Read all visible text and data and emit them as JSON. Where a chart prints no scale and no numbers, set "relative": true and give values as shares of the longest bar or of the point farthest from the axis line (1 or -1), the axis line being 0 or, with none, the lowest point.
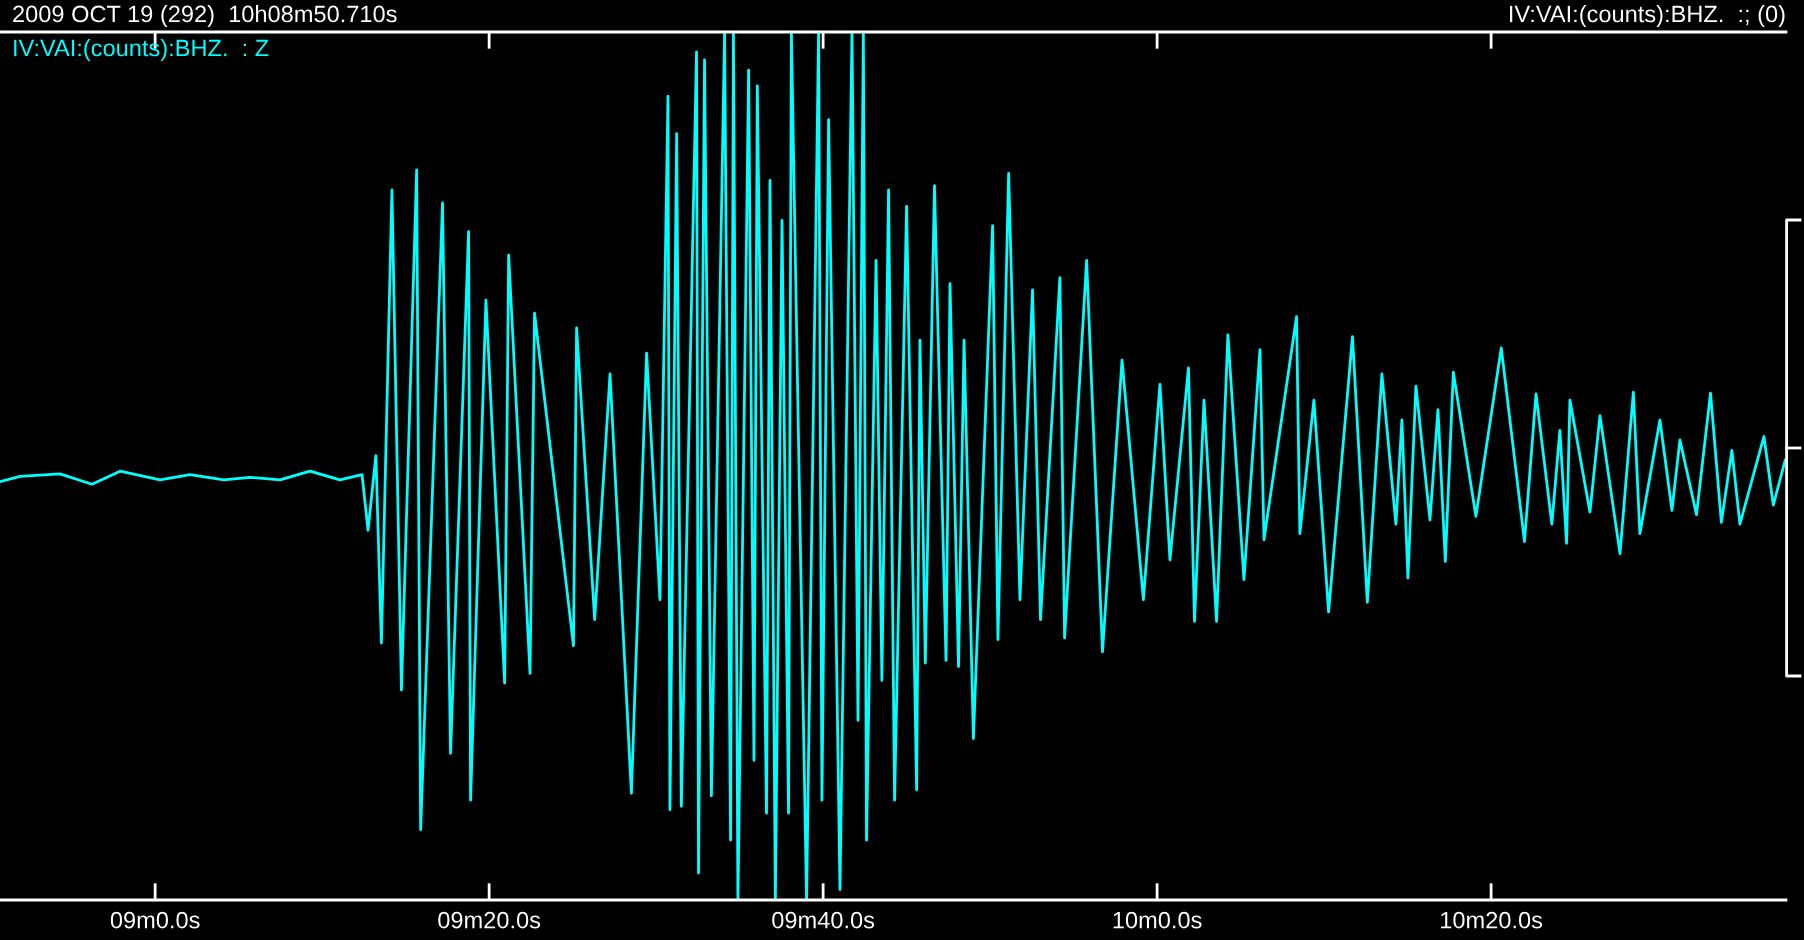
{
  "chart_data": {
    "type": "line",
    "title": "2009 OCT 19 (292)  10h08m50.710s",
    "subtitle": "IV:VAI:(counts):BHZ.  :; (0)",
    "relative": true,
    "line_style": "solid",
    "xlim": [
      "2009-10-19T10:08:50.710",
      "2009-10-19T10:10:37.660"
    ],
    "xticks": [
      {
        "value": "2009-10-19T10:09:00.000",
        "label": "09m0.0s"
      },
      {
        "value": "2009-10-19T10:09:20.000",
        "label": "09m20.0s"
      },
      {
        "value": "2009-10-19T10:09:40.000",
        "label": "09m40.0s"
      },
      {
        "value": "2009-10-19T10:10:00.000",
        "label": "10m0.0s"
      },
      {
        "value": "2009-10-19T10:10:20.000",
        "label": "10m20.0s"
      }
    ],
    "x": [
      "2009-10-19T10:08:50.710",
      "2009-10-19T10:08:51.910",
      "2009-10-19T10:08:54.300",
      "2009-10-19T10:08:56.220",
      "2009-10-19T10:08:57.900",
      "2009-10-19T10:09:00.290",
      "2009-10-19T10:09:02.090",
      "2009-10-19T10:09:04.120",
      "2009-10-19T10:09:05.680",
      "2009-10-19T10:09:07.480",
      "2009-10-19T10:09:09.270",
      "2009-10-19T10:09:11.070",
      "2009-10-19T10:09:12.390",
      "2009-10-19T10:09:12.750",
      "2009-10-19T10:09:13.220",
      "2009-10-19T10:09:13.550",
      "2009-10-19T10:09:14.180",
      "2009-10-19T10:09:14.750",
      "2009-10-19T10:09:15.660",
      "2009-10-19T10:09:15.900",
      "2009-10-19T10:09:17.210",
      "2009-10-19T10:09:17.690",
      "2009-10-19T10:09:18.770",
      "2009-10-19T10:09:18.890",
      "2009-10-19T10:09:19.810",
      "2009-10-19T10:09:20.930",
      "2009-10-19T10:09:21.170",
      "2009-10-19T10:09:22.450",
      "2009-10-19T10:09:22.720",
      "2009-10-19T10:09:25.050",
      "2009-10-19T10:09:25.240",
      "2009-10-19T10:09:26.320",
      "2009-10-19T10:09:27.240",
      "2009-10-19T10:09:28.520",
      "2009-10-19T10:09:29.430",
      "2009-10-19T10:09:30.230",
      "2009-10-19T10:09:30.710",
      "2009-10-19T10:09:30.830",
      "2009-10-19T10:09:31.230",
      "2009-10-19T10:09:31.510",
      "2009-10-19T10:09:32.420",
      "2009-10-19T10:09:32.540",
      "2009-10-19T10:09:32.900",
      "2009-10-19T10:09:33.310",
      "2009-10-19T10:09:34.100",
      "2009-10-19T10:09:34.460",
      "2009-10-19T10:09:34.630",
      "2009-10-19T10:09:34.900",
      "2009-10-19T10:09:35.540",
      "2009-10-19T10:09:35.860",
      "2009-10-19T10:09:36.060",
      "2009-10-19T10:09:36.610",
      "2009-10-19T10:09:36.820",
      "2009-10-19T10:09:37.140",
      "2009-10-19T10:09:37.540",
      "2009-10-19T10:09:37.930",
      "2009-10-19T10:09:38.100",
      "2009-10-19T10:09:39.010",
      "2009-10-19T10:09:39.730",
      "2009-10-19T10:09:39.930",
      "2009-10-19T10:09:40.330",
      "2009-10-19T10:09:41.010",
      "2009-10-19T10:09:41.730",
      "2009-10-19T10:09:42.090",
      "2009-10-19T10:09:42.410",
      "2009-10-19T10:09:42.600",
      "2009-10-19T10:09:43.170",
      "2009-10-19T10:09:43.520",
      "2009-10-19T10:09:43.920",
      "2009-10-19T10:09:44.280",
      "2009-10-19T10:09:45.000",
      "2009-10-19T10:09:45.600",
      "2009-10-19T10:09:45.800",
      "2009-10-19T10:09:46.120",
      "2009-10-19T10:09:46.670",
      "2009-10-19T10:09:47.360",
      "2009-10-19T10:09:47.600",
      "2009-10-19T10:09:48.110",
      "2009-10-19T10:09:48.440",
      "2009-10-19T10:09:49.000",
      "2009-10-19T10:09:50.150",
      "2009-10-19T10:09:50.470",
      "2009-10-19T10:09:51.110",
      "2009-10-19T10:09:51.790",
      "2009-10-19T10:09:52.540",
      "2009-10-19T10:09:53.020",
      "2009-10-19T10:09:54.180",
      "2009-10-19T10:09:54.460",
      "2009-10-19T10:09:55.780",
      "2009-10-19T10:09:56.730",
      "2009-10-19T10:09:57.900",
      "2009-10-19T10:09:59.180",
      "2009-10-19T10:10:00.170",
      "2009-10-19T10:10:00.770",
      "2009-10-19T10:10:01.880",
      "2009-10-19T10:10:02.240",
      "2009-10-19T10:10:02.810",
      "2009-10-19T10:10:03.560",
      "2009-10-19T10:10:04.240",
      "2009-10-19T10:10:05.200",
      "2009-10-19T10:10:06.160",
      "2009-10-19T10:10:06.400",
      "2009-10-19T10:10:08.350",
      "2009-10-19T10:10:08.550",
      "2009-10-19T10:10:09.390",
      "2009-10-19T10:10:10.270",
      "2009-10-19T10:10:11.700",
      "2009-10-19T10:10:12.590",
      "2009-10-19T10:10:13.460",
      "2009-10-19T10:10:14.300",
      "2009-10-19T10:10:14.660",
      "2009-10-19T10:10:15.020",
      "2009-10-19T10:10:15.500",
      "2009-10-19T10:10:16.340",
      "2009-10-19T10:10:16.820",
      "2009-10-19T10:10:17.260",
      "2009-10-19T10:10:17.740",
      "2009-10-19T10:10:19.090",
      "2009-10-19T10:10:20.610",
      "2009-10-19T10:10:22.000",
      "2009-10-19T10:10:22.690",
      "2009-10-19T10:10:23.640",
      "2009-10-19T10:10:24.120",
      "2009-10-19T10:10:24.520",
      "2009-10-19T10:10:24.720",
      "2009-10-19T10:10:25.920",
      "2009-10-19T10:10:26.520",
      "2009-10-19T10:10:27.720",
      "2009-10-19T10:10:28.520",
      "2009-10-19T10:10:28.910",
      "2009-10-19T10:10:30.110",
      "2009-10-19T10:10:30.830",
      "2009-10-19T10:10:31.310",
      "2009-10-19T10:10:32.300",
      "2009-10-19T10:10:33.140",
      "2009-10-19T10:10:33.790",
      "2009-10-19T10:10:34.420",
      "2009-10-19T10:10:34.900",
      "2009-10-19T10:10:36.340",
      "2009-10-19T10:10:36.900",
      "2009-10-19T10:10:37.620"
    ],
    "series": [
      {
        "name": "IV:VAI:(counts):BHZ.  : Z",
        "color": "#00ffff",
        "values": [
          0.482,
          0.488,
          0.491,
          0.479,
          0.494,
          0.484,
          0.49,
          0.484,
          0.487,
          0.484,
          0.494,
          0.484,
          0.49,
          0.426,
          0.512,
          0.296,
          0.818,
          0.242,
          0.841,
          0.081,
          0.803,
          0.169,
          0.77,
          0.115,
          0.691,
          0.25,
          0.743,
          0.261,
          0.676,
          0.293,
          0.659,
          0.323,
          0.606,
          0.123,
          0.63,
          0.346,
          0.926,
          0.104,
          0.883,
          0.108,
          0.977,
          0.031,
          0.968,
          0.12,
          1,
          0.069,
          1,
          0,
          0.956,
          0.161,
          0.938,
          0.1,
          0.829,
          0,
          0.783,
          0.1,
          1,
          0,
          1,
          0.115,
          0.899,
          0.012,
          1,
          0.207,
          1,
          0.069,
          0.737,
          0.253,
          0.818,
          0.115,
          0.799,
          0.127,
          0.645,
          0.273,
          0.823,
          0.276,
          0.71,
          0.269,
          0.645,
          0.186,
          0.777,
          0.3,
          0.837,
          0.346,
          0.703,
          0.323,
          0.717,
          0.302,
          0.737,
          0.286,
          0.622,
          0.346,
          0.594,
          0.392,
          0.613,
          0.321,
          0.576,
          0.321,
          0.651,
          0.369,
          0.634,
          0.415,
          0.672,
          0.422,
          0.576,
          0.332,
          0.649,
          0.343,
          0.606,
          0.433,
          0.553,
          0.371,
          0.592,
          0.438,
          0.565,
          0.39,
          0.608,
          0.442,
          0.636,
          0.413,
          0.583,
          0.433,
          0.541,
          0.411,
          0.576,
          0.447,
          0.558,
          0.399,
          0.585,
          0.422,
          0.553,
          0.449,
          0.53,
          0.444,
          0.584,
          0.435,
          0.518,
          0.433,
          0.534,
          0.455,
          0.507
        ]
      }
    ]
  }
}
